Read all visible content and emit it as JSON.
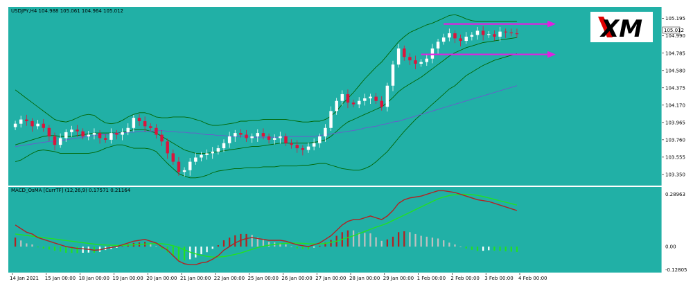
{
  "colors": {
    "background": "#21b0a6",
    "bull": "#ffffff",
    "bear": "#dc143c",
    "bollinger": "#006400",
    "moving_average": "#6a5acd",
    "macd_line": "#b22222",
    "signal_line": "#22e022",
    "hist_up_rising": "#b22222",
    "hist_up_falling": "#c0c0c0",
    "hist_down_rising": "#ffffff",
    "hist_down_falling": "#22e022",
    "arrows": "#e020e0",
    "logo_text": "#000000",
    "logo_accent": "#e00000"
  },
  "logo": {
    "text": "XM"
  },
  "price_panel": {
    "header": "USDJPY,H4  104.988 105.061 104.964 105.012",
    "current_price_label": "105.012",
    "y_ticks": [
      "105.195",
      "104.990",
      "104.785",
      "104.580",
      "104.375",
      "104.170",
      "103.965",
      "103.760",
      "103.555",
      "103.350"
    ]
  },
  "macd_panel": {
    "header": "MACD_OsMA [CurrTF] (12,26,9) 0.17571 0.21164",
    "y_ticks": [
      "0.28963",
      "0.00",
      "-0.12805"
    ]
  },
  "x_ticks": [
    "14 Jan 2021",
    "15 Jan 00:00",
    "18 Jan 00:00",
    "19 Jan 00:00",
    "20 Jan 00:00",
    "21 Jan 00:00",
    "22 Jan 00:00",
    "25 Jan 00:00",
    "26 Jan 00:00",
    "27 Jan 00:00",
    "28 Jan 00:00",
    "29 Jan 00:00",
    "1 Feb 00:00",
    "2 Feb 00:00",
    "3 Feb 00:00",
    "4 Feb 00:00"
  ],
  "chart_data": [
    {
      "type": "candlestick",
      "title": "USDJPY,H4",
      "ylim": [
        103.3,
        105.25
      ],
      "bar_count": 90,
      "tick_bar_index": [
        0,
        6,
        12,
        18,
        24,
        30,
        36,
        42,
        48,
        54,
        60,
        66,
        72,
        78,
        84,
        90
      ],
      "closes": [
        103.95,
        104.0,
        103.98,
        103.92,
        103.95,
        103.9,
        103.8,
        103.7,
        103.78,
        103.85,
        103.88,
        103.86,
        103.8,
        103.82,
        103.84,
        103.78,
        103.76,
        103.84,
        103.82,
        103.85,
        103.9,
        104.02,
        103.98,
        103.92,
        103.9,
        103.82,
        103.74,
        103.6,
        103.5,
        103.38,
        103.4,
        103.5,
        103.55,
        103.58,
        103.6,
        103.62,
        103.66,
        103.72,
        103.8,
        103.84,
        103.82,
        103.78,
        103.8,
        103.84,
        103.8,
        103.76,
        103.78,
        103.8,
        103.72,
        103.7,
        103.66,
        103.64,
        103.68,
        103.72,
        103.8,
        103.9,
        104.1,
        104.22,
        104.3,
        104.2,
        104.18,
        104.22,
        104.25,
        104.27,
        104.22,
        104.15,
        104.4,
        104.65,
        104.84,
        104.74,
        104.7,
        104.66,
        104.68,
        104.72,
        104.84,
        104.92,
        104.97,
        105.02,
        104.96,
        104.93,
        104.98,
        105.0,
        105.05,
        105.0,
        105.01,
        104.98,
        105.04,
        105.03,
        105.02,
        105.01
      ],
      "bands": {
        "upper": [
          104.35,
          104.3,
          104.25,
          104.2,
          104.15,
          104.1,
          104.05,
          104.0,
          103.98,
          103.97,
          103.99,
          104.02,
          104.05,
          104.06,
          104.05,
          104.0,
          103.96,
          103.95,
          103.96,
          103.99,
          104.03,
          104.06,
          104.08,
          104.08,
          104.06,
          104.03,
          104.02,
          104.02,
          104.03,
          104.03,
          104.03,
          104.02,
          104.0,
          103.98,
          103.95,
          103.93,
          103.93,
          103.94,
          103.95,
          103.96,
          103.98,
          103.98,
          103.99,
          103.99,
          104.0,
          104.0,
          104.0,
          104.0,
          104.0,
          103.99,
          103.98,
          103.97,
          103.97,
          103.98,
          103.98,
          104.0,
          104.04,
          104.1,
          104.18,
          104.25,
          104.32,
          104.4,
          104.48,
          104.55,
          104.62,
          104.68,
          104.76,
          104.84,
          104.92,
          104.98,
          105.03,
          105.06,
          105.09,
          105.12,
          105.14,
          105.17,
          105.2,
          105.23,
          105.24,
          105.22,
          105.19,
          105.17,
          105.16,
          105.16,
          105.16,
          105.16,
          105.16,
          105.16,
          105.16,
          105.16
        ],
        "middle": [
          103.7,
          103.72,
          103.74,
          103.76,
          103.78,
          103.8,
          103.81,
          103.81,
          103.8,
          103.8,
          103.8,
          103.81,
          103.82,
          103.83,
          103.84,
          103.84,
          103.84,
          103.84,
          103.84,
          103.85,
          103.86,
          103.88,
          103.88,
          103.88,
          103.86,
          103.84,
          103.8,
          103.76,
          103.72,
          103.68,
          103.64,
          103.62,
          103.6,
          103.6,
          103.6,
          103.61,
          103.62,
          103.63,
          103.64,
          103.65,
          103.66,
          103.67,
          103.68,
          103.68,
          103.69,
          103.7,
          103.71,
          103.72,
          103.72,
          103.72,
          103.72,
          103.72,
          103.72,
          103.73,
          103.74,
          103.76,
          103.8,
          103.86,
          103.92,
          103.97,
          104.0,
          104.03,
          104.06,
          104.09,
          104.12,
          104.15,
          104.2,
          104.26,
          104.33,
          104.38,
          104.42,
          104.46,
          104.5,
          104.55,
          104.6,
          104.65,
          104.7,
          104.75,
          104.79,
          104.82,
          104.85,
          104.87,
          104.89,
          104.91,
          104.92,
          104.93,
          104.94,
          104.95,
          104.96,
          104.97
        ],
        "lower": [
          103.5,
          103.52,
          103.56,
          103.6,
          103.63,
          103.64,
          103.63,
          103.62,
          103.6,
          103.6,
          103.6,
          103.6,
          103.6,
          103.6,
          103.61,
          103.63,
          103.66,
          103.68,
          103.7,
          103.7,
          103.68,
          103.66,
          103.66,
          103.66,
          103.65,
          103.62,
          103.55,
          103.48,
          103.42,
          103.36,
          103.33,
          103.31,
          103.31,
          103.32,
          103.34,
          103.37,
          103.39,
          103.4,
          103.41,
          103.42,
          103.42,
          103.43,
          103.43,
          103.43,
          103.44,
          103.44,
          103.44,
          103.45,
          103.45,
          103.45,
          103.45,
          103.46,
          103.46,
          103.47,
          103.48,
          103.48,
          103.46,
          103.44,
          103.42,
          103.41,
          103.4,
          103.4,
          103.42,
          103.45,
          103.5,
          103.56,
          103.62,
          103.7,
          103.78,
          103.86,
          103.93,
          104.0,
          104.06,
          104.12,
          104.18,
          104.24,
          104.3,
          104.36,
          104.4,
          104.46,
          104.52,
          104.56,
          104.6,
          104.64,
          104.67,
          104.7,
          104.72,
          104.74,
          104.76,
          104.78
        ]
      },
      "moving_average": [
        103.68,
        103.69,
        103.7,
        103.71,
        103.72,
        103.73,
        103.74,
        103.74,
        103.75,
        103.76,
        103.77,
        103.78,
        103.79,
        103.8,
        103.81,
        103.82,
        103.82,
        103.83,
        103.84,
        103.84,
        103.85,
        103.85,
        103.86,
        103.86,
        103.86,
        103.87,
        103.87,
        103.86,
        103.86,
        103.85,
        103.85,
        103.84,
        103.84,
        103.83,
        103.82,
        103.82,
        103.81,
        103.81,
        103.8,
        103.8,
        103.8,
        103.8,
        103.79,
        103.79,
        103.79,
        103.79,
        103.79,
        103.79,
        103.8,
        103.8,
        103.8,
        103.8,
        103.8,
        103.8,
        103.81,
        103.82,
        103.83,
        103.84,
        103.85,
        103.86,
        103.87,
        103.88,
        103.9,
        103.91,
        103.92,
        103.94,
        103.95,
        103.97,
        103.98,
        104.0,
        104.02,
        104.04,
        104.06,
        104.08,
        104.1,
        104.12,
        104.14,
        104.16,
        104.18,
        104.2,
        104.22,
        104.24,
        104.26,
        104.28,
        104.3,
        104.32,
        104.34,
        104.36,
        104.38,
        104.4
      ],
      "annotations": [
        {
          "type": "arrow",
          "y": 105.13,
          "from_bar": 76,
          "to_bar": 90
        },
        {
          "type": "arrow",
          "y": 104.77,
          "from_bar": 72,
          "to_bar": 90
        }
      ]
    },
    {
      "type": "histogram+line",
      "title": "MACD_OsMA [CurrTF] (12,26,9)",
      "ylim": [
        -0.13,
        0.3
      ],
      "macd": [
        0.12,
        0.1,
        0.08,
        0.07,
        0.05,
        0.04,
        0.03,
        0.02,
        0.01,
        0.0,
        -0.005,
        -0.01,
        -0.012,
        -0.015,
        -0.02,
        -0.018,
        -0.01,
        -0.005,
        0.0,
        0.01,
        0.02,
        0.03,
        0.035,
        0.04,
        0.03,
        0.02,
        0.0,
        -0.02,
        -0.05,
        -0.08,
        -0.095,
        -0.1,
        -0.1,
        -0.09,
        -0.085,
        -0.07,
        -0.05,
        -0.02,
        0.0,
        0.02,
        0.035,
        0.045,
        0.05,
        0.045,
        0.04,
        0.035,
        0.035,
        0.035,
        0.03,
        0.02,
        0.01,
        0.005,
        0.0,
        0.01,
        0.02,
        0.04,
        0.06,
        0.09,
        0.12,
        0.14,
        0.15,
        0.15,
        0.16,
        0.17,
        0.16,
        0.15,
        0.17,
        0.2,
        0.24,
        0.26,
        0.27,
        0.275,
        0.28,
        0.29,
        0.3,
        0.31,
        0.31,
        0.305,
        0.3,
        0.29,
        0.28,
        0.27,
        0.26,
        0.255,
        0.25,
        0.24,
        0.23,
        0.22,
        0.21,
        0.2
      ],
      "signal": [
        0.07,
        0.066,
        0.062,
        0.058,
        0.054,
        0.05,
        0.046,
        0.042,
        0.038,
        0.034,
        0.03,
        0.026,
        0.022,
        0.018,
        0.014,
        0.011,
        0.009,
        0.008,
        0.007,
        0.007,
        0.008,
        0.01,
        0.012,
        0.014,
        0.016,
        0.017,
        0.016,
        0.012,
        0.005,
        -0.005,
        -0.018,
        -0.03,
        -0.04,
        -0.048,
        -0.054,
        -0.058,
        -0.058,
        -0.055,
        -0.05,
        -0.043,
        -0.035,
        -0.025,
        -0.015,
        -0.005,
        0.002,
        0.008,
        0.012,
        0.016,
        0.018,
        0.02,
        0.02,
        0.018,
        0.016,
        0.015,
        0.015,
        0.018,
        0.023,
        0.03,
        0.04,
        0.05,
        0.06,
        0.072,
        0.084,
        0.096,
        0.108,
        0.118,
        0.13,
        0.145,
        0.16,
        0.175,
        0.19,
        0.205,
        0.22,
        0.235,
        0.25,
        0.265,
        0.275,
        0.283,
        0.288,
        0.29,
        0.29,
        0.288,
        0.284,
        0.278,
        0.27,
        0.262,
        0.254,
        0.246,
        0.238,
        0.23
      ]
    }
  ]
}
